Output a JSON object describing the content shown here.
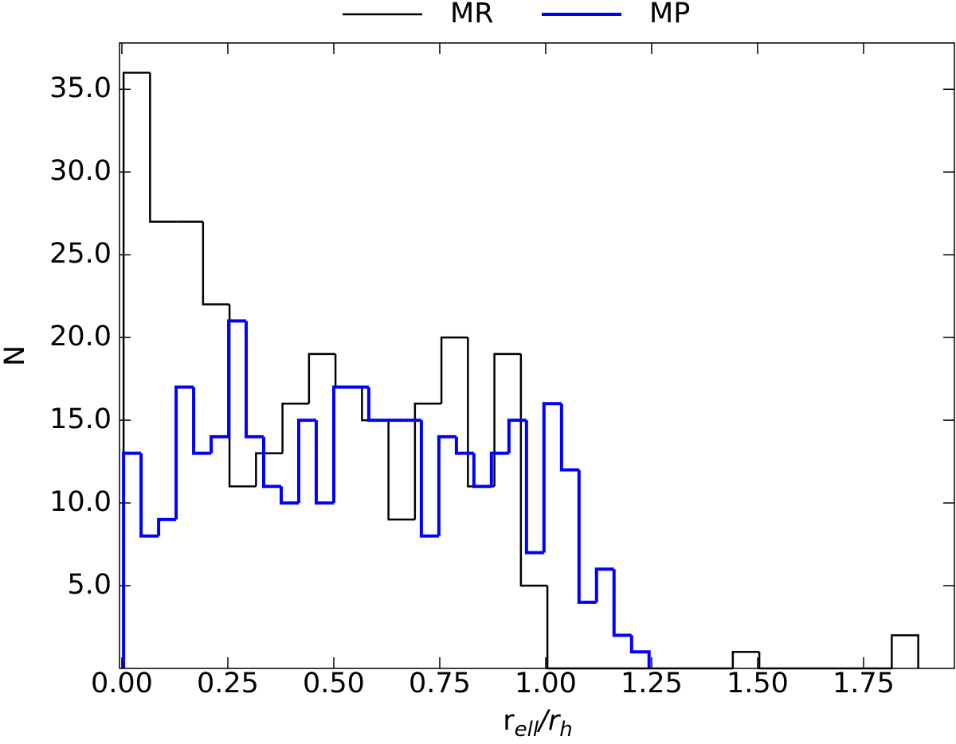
{
  "chart_data": {
    "type": "histogram",
    "xlabel": [
      "r",
      "ell",
      "/r",
      "h"
    ],
    "ylabel": "N",
    "legend": "top-outside",
    "xlim": [
      -0.0056,
      1.9643
    ],
    "ylim": [
      0,
      37.8
    ],
    "xticks": [
      {
        "value": 0,
        "label": "0.00"
      },
      {
        "value": 0.25,
        "label": "0.25"
      },
      {
        "value": 0.5,
        "label": "0.50"
      },
      {
        "value": 0.75,
        "label": "0.75"
      },
      {
        "value": 1,
        "label": "1.00"
      },
      {
        "value": 1.25,
        "label": "1.25"
      },
      {
        "value": 1.5,
        "label": "1.50"
      },
      {
        "value": 1.75,
        "label": "1.75"
      }
    ],
    "yticks": [
      {
        "value": 5,
        "label": "5.0"
      },
      {
        "value": 10,
        "label": "10.0"
      },
      {
        "value": 15,
        "label": "15.0"
      },
      {
        "value": 20,
        "label": "20.0"
      },
      {
        "value": 25,
        "label": "25.0"
      },
      {
        "value": 30,
        "label": "30.0"
      },
      {
        "value": 35,
        "label": "35.0"
      }
    ],
    "series": [
      {
        "name": "MR",
        "color": "#000000",
        "bins": [
          0.004,
          0.0665,
          0.129,
          0.1915,
          0.254,
          0.3165,
          0.379,
          0.4415,
          0.504,
          0.5665,
          0.629,
          0.6915,
          0.754,
          0.8165,
          0.879,
          0.9415,
          1.004,
          1.0665,
          1.129,
          1.1915,
          1.254,
          1.3165,
          1.379,
          1.4415,
          1.504,
          1.5665,
          1.629,
          1.6915,
          1.754,
          1.8165,
          1.879
        ],
        "values": [
          36,
          27,
          27,
          22,
          11,
          13,
          16,
          19,
          17,
          15,
          9,
          16,
          20,
          11,
          19,
          5,
          0,
          0,
          0,
          0,
          0,
          0,
          0,
          1,
          0,
          0,
          0,
          0,
          0,
          2
        ]
      },
      {
        "name": "MP",
        "color": "#0000ff",
        "bins": [
          0.004,
          0.0453,
          0.0867,
          0.128,
          0.1693,
          0.2107,
          0.252,
          0.2933,
          0.3346,
          0.376,
          0.4173,
          0.4586,
          0.5,
          0.5413,
          0.5826,
          0.624,
          0.6653,
          0.7066,
          0.7479,
          0.7893,
          0.8306,
          0.8719,
          0.9133,
          0.9546,
          0.9959,
          1.0373,
          1.0786,
          1.1199,
          1.1612,
          1.2026,
          1.2439
        ],
        "values": [
          13,
          8,
          9,
          17,
          13,
          14,
          21,
          14,
          11,
          10,
          15,
          10,
          17,
          17,
          15,
          15,
          15,
          8,
          14,
          13,
          11,
          13,
          15,
          7,
          16,
          12,
          4,
          6,
          2,
          1
        ]
      }
    ]
  }
}
